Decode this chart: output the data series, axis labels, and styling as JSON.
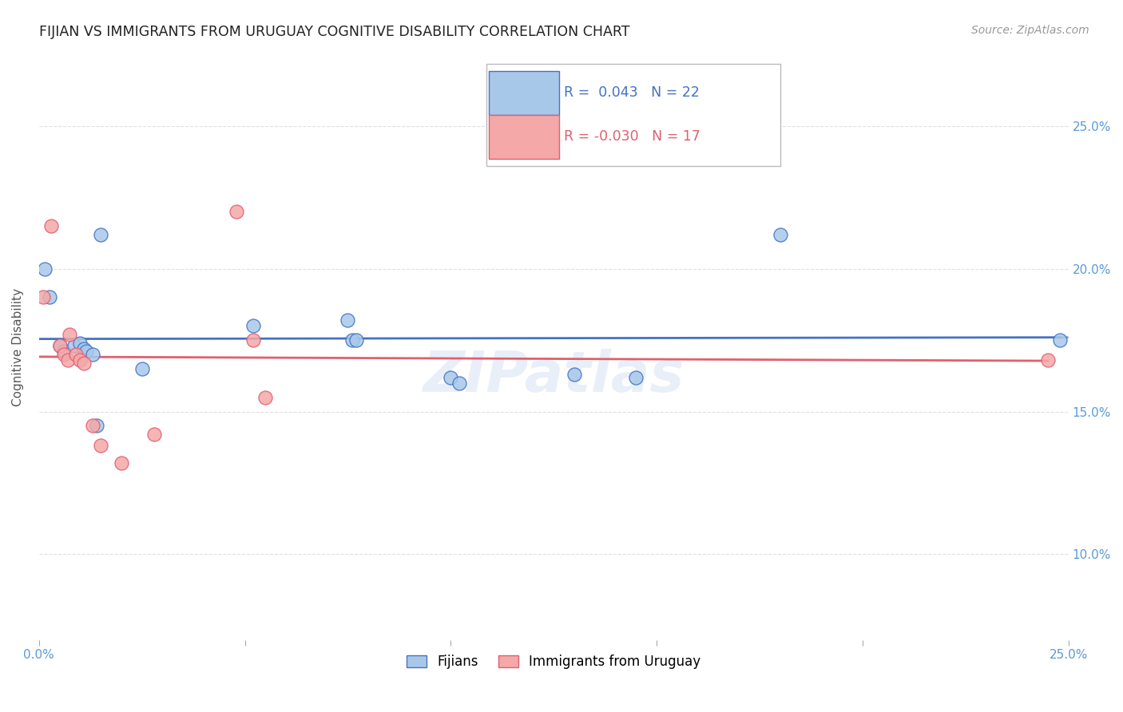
{
  "title": "FIJIAN VS IMMIGRANTS FROM URUGUAY COGNITIVE DISABILITY CORRELATION CHART",
  "source": "Source: ZipAtlas.com",
  "ylabel": "Cognitive Disability",
  "xlim": [
    0.0,
    25.0
  ],
  "ylim": [
    7.0,
    27.5
  ],
  "fijians_color": "#a8c8ea",
  "uruguay_color": "#f4a8a8",
  "fijians_r": 0.043,
  "fijians_n": 22,
  "uruguay_r": -0.03,
  "uruguay_n": 17,
  "fijians_x": [
    0.15,
    0.25,
    0.5,
    0.6,
    0.85,
    1.0,
    1.1,
    1.15,
    1.3,
    1.5,
    2.5,
    7.5,
    7.6,
    7.7,
    10.0,
    10.2,
    13.0,
    14.5,
    18.0,
    24.8,
    5.2,
    1.4
  ],
  "fijians_y": [
    20.0,
    19.0,
    17.3,
    17.1,
    17.3,
    17.4,
    17.2,
    17.1,
    17.0,
    21.2,
    16.5,
    18.2,
    17.5,
    17.5,
    16.2,
    16.0,
    16.3,
    16.2,
    21.2,
    17.5,
    18.0,
    14.5
  ],
  "uruguay_x": [
    0.1,
    0.3,
    0.5,
    0.6,
    0.7,
    0.75,
    0.9,
    1.0,
    1.1,
    1.3,
    1.5,
    2.0,
    2.8,
    4.8,
    5.2,
    5.5,
    24.5
  ],
  "uruguay_y": [
    19.0,
    21.5,
    17.3,
    17.0,
    16.8,
    17.7,
    17.0,
    16.8,
    16.7,
    14.5,
    13.8,
    13.2,
    14.2,
    22.0,
    17.5,
    15.5,
    16.8
  ],
  "legend_label_fijians": "Fijians",
  "legend_label_uruguay": "Immigrants from Uruguay",
  "fijians_line_color": "#4472c4",
  "uruguay_line_color": "#e06070",
  "watermark": "ZIPatlas",
  "background_color": "#ffffff",
  "grid_color": "#dddddd",
  "tick_color": "#5b9bd5",
  "ytick_values": [
    10.0,
    15.0,
    20.0,
    25.0
  ]
}
